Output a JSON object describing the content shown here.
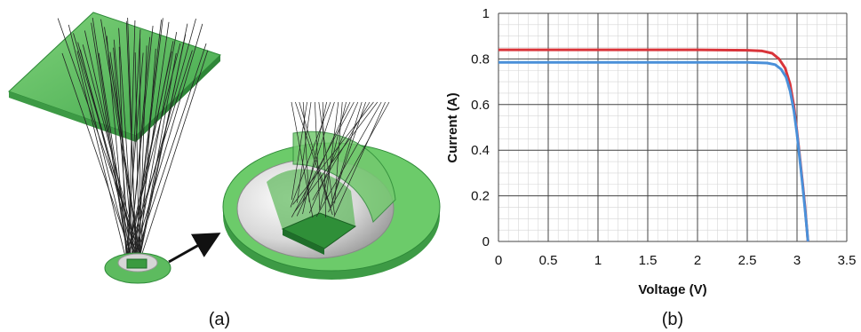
{
  "panel_a": {
    "caption": "(a)"
  },
  "panel_b": {
    "caption": "(b)"
  },
  "chart_data": {
    "type": "line",
    "xlabel": "Voltage (V)",
    "ylabel": "Current (A)",
    "xlim": [
      0,
      3.5
    ],
    "ylim": [
      0,
      1
    ],
    "xticks": [
      "0",
      "0.5",
      "1",
      "1.5",
      "2",
      "2.5",
      "3",
      "3.5"
    ],
    "yticks": [
      "0",
      "0.2",
      "0.4",
      "0.6",
      "0.8",
      "1"
    ],
    "grid": true,
    "series": [
      {
        "color": "#d9343a",
        "x": [
          0,
          0.5,
          1.0,
          1.5,
          2.0,
          2.5,
          2.65,
          2.75,
          2.82,
          2.88,
          2.93,
          2.97,
          3.0,
          3.03,
          3.06,
          3.08,
          3.1,
          3.11
        ],
        "y": [
          0.84,
          0.84,
          0.84,
          0.84,
          0.84,
          0.838,
          0.835,
          0.825,
          0.8,
          0.76,
          0.69,
          0.59,
          0.48,
          0.36,
          0.24,
          0.15,
          0.05,
          0.0
        ]
      },
      {
        "color": "#4a90d9",
        "x": [
          0,
          0.5,
          1.0,
          1.5,
          2.0,
          2.5,
          2.7,
          2.78,
          2.84,
          2.89,
          2.93,
          2.97,
          3.0,
          3.03,
          3.06,
          3.08,
          3.1,
          3.11
        ],
        "y": [
          0.785,
          0.785,
          0.785,
          0.785,
          0.785,
          0.785,
          0.782,
          0.775,
          0.755,
          0.72,
          0.66,
          0.57,
          0.47,
          0.35,
          0.23,
          0.14,
          0.05,
          0.0
        ]
      }
    ]
  }
}
